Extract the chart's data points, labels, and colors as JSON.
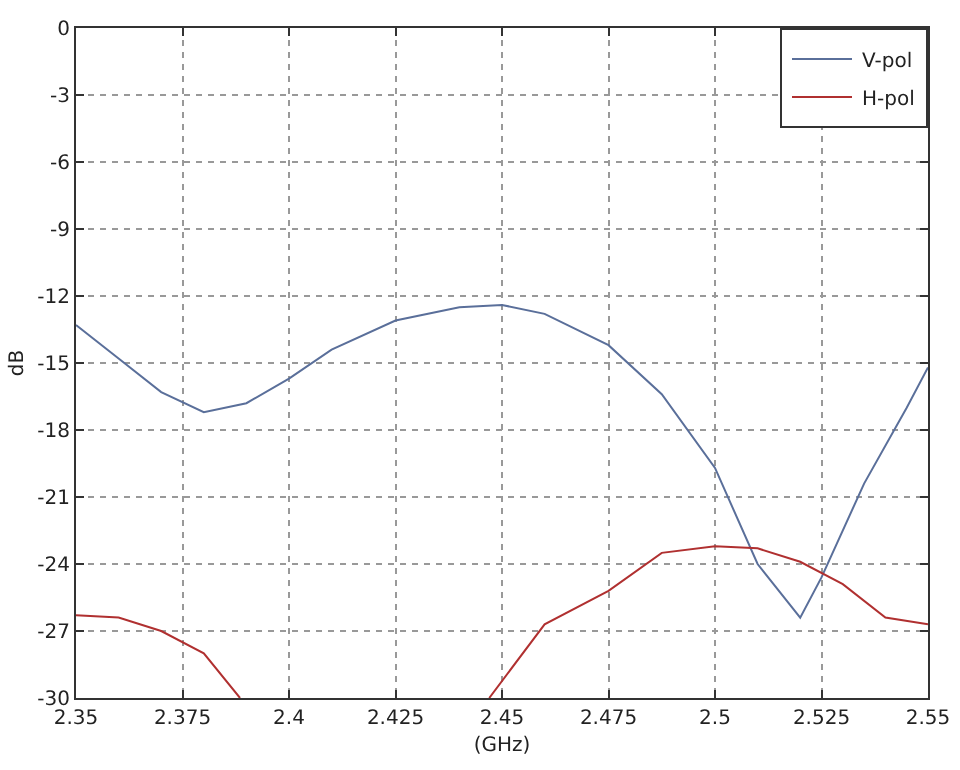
{
  "chart_data": {
    "type": "line",
    "xlabel": "(GHz)",
    "ylabel": "dB",
    "xlim": [
      2.35,
      2.55
    ],
    "xticks": [
      2.35,
      2.375,
      2.4,
      2.425,
      2.45,
      2.475,
      2.5,
      2.525,
      2.55
    ],
    "ylim": [
      -30,
      0
    ],
    "yticks": [
      -30,
      -27,
      -24,
      -21,
      -18,
      -15,
      -12,
      -9,
      -6,
      -3,
      0
    ],
    "grid": true,
    "legend": "top right",
    "line_style": "solid",
    "series": [
      {
        "name": "V-pol",
        "color": "#5a6f9a",
        "x": [
          2.35,
          2.36,
          2.37,
          2.38,
          2.39,
          2.4,
          2.41,
          2.425,
          2.44,
          2.45,
          2.46,
          2.475,
          2.4875,
          2.5,
          2.51,
          2.52,
          2.525,
          2.535,
          2.545,
          2.55
        ],
        "values": [
          -13.3,
          -14.8,
          -16.3,
          -17.2,
          -16.8,
          -15.7,
          -14.4,
          -13.1,
          -12.5,
          -12.4,
          -12.8,
          -14.2,
          -16.4,
          -19.7,
          -24.0,
          -26.4,
          -24.6,
          -20.4,
          -17.0,
          -15.2
        ]
      },
      {
        "name": "H-pol",
        "color": "#b03030",
        "x": [
          2.35,
          2.36,
          2.37,
          2.38,
          2.3885,
          2.42,
          2.447,
          2.46,
          2.475,
          2.4875,
          2.5,
          2.51,
          2.52,
          2.53,
          2.54,
          2.55
        ],
        "values": [
          -26.3,
          -26.4,
          -27.0,
          -28.0,
          -30,
          null,
          -30,
          -26.7,
          -25.2,
          -23.5,
          -23.2,
          -23.3,
          -23.9,
          -24.9,
          -26.4,
          -26.7
        ]
      }
    ]
  }
}
